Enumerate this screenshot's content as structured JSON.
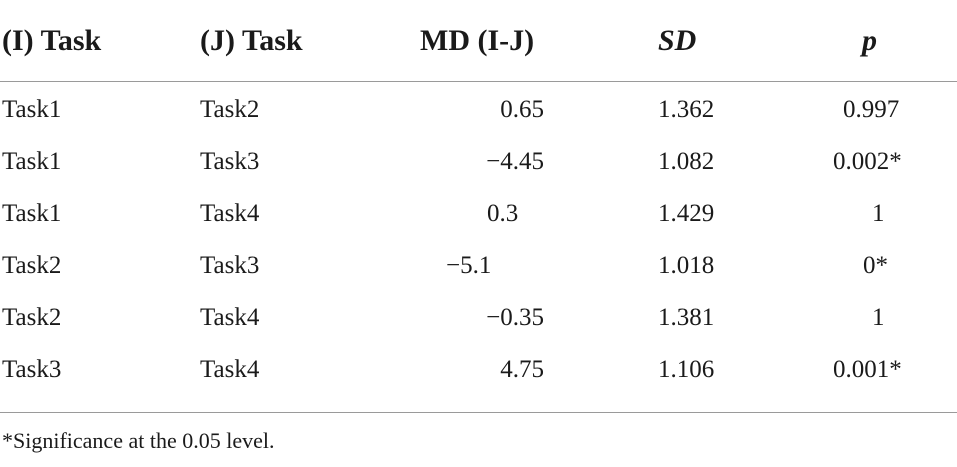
{
  "table": {
    "headers": [
      "(I) Task",
      "(J) Task",
      "MD (I-J)",
      "SD",
      "p"
    ],
    "rows": [
      [
        "Task1",
        "Task2",
        "0.65",
        "1.362",
        "0.997"
      ],
      [
        "Task1",
        "Task3",
        "−4.45",
        "1.082",
        "0.002*"
      ],
      [
        "Task1",
        "Task4",
        "0.3",
        "1.429",
        "1"
      ],
      [
        "Task2",
        "Task3",
        "−5.1",
        "1.018",
        "0*"
      ],
      [
        "Task2",
        "Task4",
        "−0.35",
        "1.381",
        "1"
      ],
      [
        "Task3",
        "Task4",
        "4.75",
        "1.106",
        "0.001*"
      ]
    ]
  },
  "footnote": "*Significance at the 0.05 level."
}
